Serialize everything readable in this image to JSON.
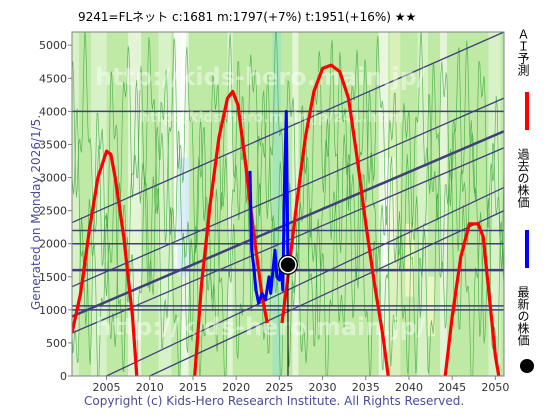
{
  "chart_data": {
    "type": "line",
    "title": "9241=FLネット    c:1681   m:1797(+7%)   t:1951(+16%)   ★★",
    "side_label": "Generated on Monday 2026/1/5.",
    "copyright": "Copyright (c) Kids-Hero Research Institute. All Rights Reserved.",
    "watermark": "http://kids-hero.main.jp/",
    "watermark_small": "http://kids-hero.main.jp/241.html",
    "xlim": [
      2001,
      2051
    ],
    "ylim": [
      0,
      5200
    ],
    "x_ticks": [
      2005,
      2010,
      2015,
      2020,
      2025,
      2030,
      2035,
      2040,
      2045,
      2050
    ],
    "y_ticks": [
      0,
      500,
      1000,
      1500,
      2000,
      2500,
      3000,
      3500,
      4000,
      4500,
      5000
    ],
    "legend": [
      {
        "label": "ＡＩ予測",
        "color": "#ff0000",
        "marker": "line"
      },
      {
        "label": "過去の株価",
        "color": "#0000ff",
        "marker": "line"
      },
      {
        "label": "最新の株価",
        "color": "#000000",
        "marker": "dot"
      }
    ],
    "latest_point": {
      "x": 2026.0,
      "y": 1681
    },
    "horizontal_levels": [
      4000,
      2200,
      2000,
      1600,
      1060,
      1000
    ],
    "trend_lines": [
      {
        "x1": 2001,
        "y1": 2320,
        "x2": 2051,
        "y2": 5200
      },
      {
        "x1": 2001,
        "y1": 1350,
        "x2": 2051,
        "y2": 4200
      },
      {
        "x1": 2001,
        "y1": 650,
        "x2": 2051,
        "y2": 3450
      },
      {
        "x1": 2005,
        "y1": 0,
        "x2": 2051,
        "y2": 2850
      },
      {
        "x1": 2010,
        "y1": 0,
        "x2": 2051,
        "y2": 2500
      },
      {
        "x1": 2001,
        "y1": 900,
        "x2": 2051,
        "y2": 3700
      }
    ],
    "series": [
      {
        "name": "ＡＩ予測",
        "color": "#ff0000",
        "points": [
          [
            2001,
            650
          ],
          [
            2002,
            1250
          ],
          [
            2003,
            2200
          ],
          [
            2004,
            3000
          ],
          [
            2005,
            3400
          ],
          [
            2005.5,
            3350
          ],
          [
            2006,
            3000
          ],
          [
            2007,
            2100
          ],
          [
            2008,
            900
          ],
          [
            2008.5,
            0
          ]
        ]
      },
      {
        "name": "ＡＩ予測",
        "color": "#ff0000",
        "points": [
          [
            2015.2,
            0
          ],
          [
            2016,
            1400
          ],
          [
            2017,
            2600
          ],
          [
            2018,
            3600
          ],
          [
            2019,
            4200
          ],
          [
            2019.6,
            4300
          ],
          [
            2020.2,
            4100
          ],
          [
            2021,
            3300
          ],
          [
            2022,
            2200
          ],
          [
            2023,
            1200
          ],
          [
            2023.6,
            800
          ]
        ]
      },
      {
        "name": "ＡＩ予測",
        "color": "#ff0000",
        "points": [
          [
            2025.3,
            800
          ],
          [
            2026,
            1500
          ],
          [
            2027,
            2600
          ],
          [
            2028,
            3600
          ],
          [
            2029,
            4300
          ],
          [
            2030,
            4650
          ],
          [
            2031,
            4700
          ],
          [
            2032,
            4600
          ],
          [
            2033,
            4200
          ],
          [
            2034,
            3300
          ],
          [
            2035,
            2300
          ],
          [
            2036,
            1400
          ],
          [
            2037,
            600
          ],
          [
            2037.6,
            0
          ]
        ]
      },
      {
        "name": "ＡＩ予測",
        "color": "#ff0000",
        "points": [
          [
            2044.2,
            0
          ],
          [
            2045,
            900
          ],
          [
            2046,
            1800
          ],
          [
            2047,
            2300
          ],
          [
            2048,
            2300
          ],
          [
            2048.6,
            2100
          ],
          [
            2049.3,
            1200
          ],
          [
            2050,
            300
          ],
          [
            2050.4,
            0
          ]
        ]
      },
      {
        "name": "過去の株価",
        "color": "#0000ff",
        "points": [
          [
            2021.6,
            3100
          ],
          [
            2021.8,
            1900
          ],
          [
            2022,
            1700
          ],
          [
            2022.3,
            1300
          ],
          [
            2022.6,
            1100
          ],
          [
            2023,
            1250
          ],
          [
            2023.4,
            1150
          ],
          [
            2023.8,
            1500
          ],
          [
            2024,
            1250
          ],
          [
            2024.3,
            1650
          ],
          [
            2024.5,
            1900
          ],
          [
            2024.7,
            1500
          ],
          [
            2025,
            1450
          ],
          [
            2025.2,
            1700
          ],
          [
            2025.4,
            1300
          ],
          [
            2025.6,
            2900
          ],
          [
            2025.8,
            4000
          ],
          [
            2026.0,
            1681
          ]
        ]
      }
    ]
  }
}
